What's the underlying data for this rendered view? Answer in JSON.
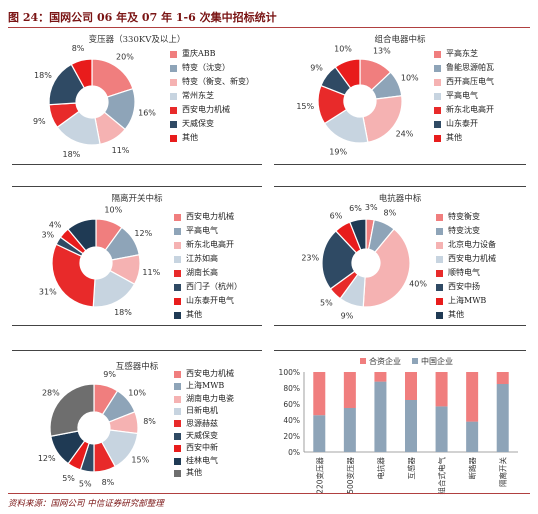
{
  "figure": {
    "title": "图 24：国网公司 06 年及 07 年 1-6 次集中招标统计",
    "source": "资料来源：国网公司 中信证券研究部整理"
  },
  "colors": {
    "c1": "#f07e7e",
    "c2": "#8ea4b8",
    "c3": "#f5b2b2",
    "c4": "#c7d4e0",
    "c5": "#e82a2a",
    "c6": "#2f4a64",
    "c7": "#e81c1c",
    "c8": "#6e6e6e"
  },
  "chart_data": [
    {
      "type": "pie",
      "title": "变压器（330KV及以上）",
      "labels": [
        "重庆ABB",
        "特变（沈变）",
        "特变（衡变、新变）",
        "常州东芝",
        "西安电力机械",
        "天威保变",
        "其他"
      ],
      "values": [
        20,
        16,
        11,
        18,
        9,
        18,
        8
      ],
      "value_labels": [
        "20%",
        "16%",
        "11%",
        "18%",
        "9%",
        "18%",
        "8%"
      ],
      "colors": [
        "#f07e7e",
        "#8ea4b8",
        "#f5b2b2",
        "#c7d4e0",
        "#e82a2a",
        "#2f4a64",
        "#e81c1c"
      ]
    },
    {
      "type": "pie",
      "title": "组合电器中标",
      "labels": [
        "平高东芝",
        "鲁能思源帕瓦",
        "西开高压电气",
        "平高电气",
        "新东北电高开",
        "山东泰开",
        "其他"
      ],
      "values": [
        13,
        10,
        24,
        19,
        15,
        9,
        10
      ],
      "value_labels": [
        "13%",
        "10%",
        "24%",
        "19%",
        "15%",
        "9%",
        "10%"
      ],
      "colors": [
        "#f07e7e",
        "#8ea4b8",
        "#f5b2b2",
        "#c7d4e0",
        "#e82a2a",
        "#2f4a64",
        "#e81c1c"
      ]
    },
    {
      "type": "pie",
      "title": "隔离开关中标",
      "labels": [
        "西安电力机械",
        "平高电气",
        "新东北电高开",
        "江苏如高",
        "湖南长高",
        "西门子（杭州）",
        "山东泰开电气",
        "其他"
      ],
      "values": [
        10,
        12,
        11,
        18,
        31,
        3,
        4,
        11
      ],
      "value_labels": [
        "10%",
        "12%",
        "11%",
        "18%",
        "31%",
        "3%",
        "4%",
        ""
      ],
      "colors": [
        "#f07e7e",
        "#8ea4b8",
        "#f5b2b2",
        "#c7d4e0",
        "#e82a2a",
        "#2f4a64",
        "#e81c1c",
        "#1f3a54"
      ]
    },
    {
      "type": "pie",
      "title": "电抗器中标",
      "labels": [
        "特变衡变",
        "特变沈变",
        "北京电力设备",
        "西安电力机械",
        "顺特电气",
        "西安中扬",
        "上海MWB",
        "其他"
      ],
      "values": [
        3,
        8,
        40,
        9,
        5,
        23,
        6,
        6
      ],
      "value_labels": [
        "3%",
        "8%",
        "40%",
        "9%",
        "5%",
        "23%",
        "6%",
        "6%"
      ],
      "colors": [
        "#f07e7e",
        "#8ea4b8",
        "#f5b2b2",
        "#c7d4e0",
        "#e82a2a",
        "#2f4a64",
        "#e81c1c",
        "#1f3a54"
      ]
    },
    {
      "type": "pie",
      "title": "互感器中标",
      "labels": [
        "西安电力机械",
        "上海MWB",
        "湖南电力电瓷",
        "日新电机",
        "思源赫兹",
        "天威保变",
        "西安中新",
        "桂林电气",
        "其他"
      ],
      "values": [
        9,
        10,
        8,
        15,
        8,
        5,
        5,
        12,
        28
      ],
      "value_labels": [
        "9%",
        "10%",
        "8%",
        "15%",
        "8%",
        "5%",
        "5%",
        "12%",
        "28%"
      ],
      "colors": [
        "#f07e7e",
        "#8ea4b8",
        "#f5b2b2",
        "#c7d4e0",
        "#e82a2a",
        "#2f4a64",
        "#e81c1c",
        "#1f3a54",
        "#6e6e6e"
      ]
    },
    {
      "type": "bar",
      "stacked": true,
      "categories": [
        "220变压器",
        "500变压器",
        "电抗器",
        "互感器",
        "组合式电气",
        "断路器",
        "隔离开关"
      ],
      "series": [
        {
          "name": "中国企业",
          "values": [
            46,
            55,
            88,
            65,
            57,
            38,
            85
          ],
          "color": "#8ea4b8"
        },
        {
          "name": "合资企业",
          "values": [
            54,
            45,
            12,
            35,
            43,
            62,
            15
          ],
          "color": "#f07e7e"
        }
      ],
      "legend_order": [
        "合资企业",
        "中国企业"
      ],
      "ylim": [
        0,
        100
      ],
      "yticks": [
        "0%",
        "20%",
        "40%",
        "60%",
        "80%",
        "100%"
      ],
      "legend_position": "top"
    }
  ]
}
